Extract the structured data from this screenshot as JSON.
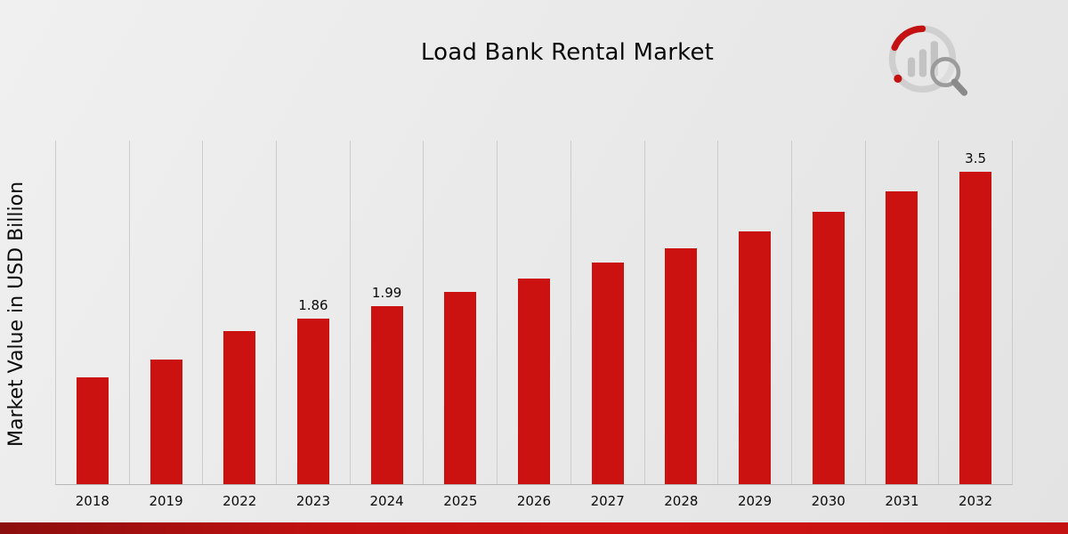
{
  "page": {
    "title": "Load Bank Rental Market",
    "y_axis_label": "Market Value in USD Billion",
    "brand_logo": "market-research-bar-chart-magnifier-logo",
    "colors": {
      "bar": "#cc1111",
      "gridline": "#cccccc",
      "baseline": "#b5b5b5",
      "footer_stripe_dark": "#8c0e0e",
      "footer_stripe_red": "#d01212"
    }
  },
  "chart_data": {
    "type": "bar",
    "title": "Load Bank Rental Market",
    "xlabel": "",
    "ylabel": "Market Value in USD Billion",
    "ylim": [
      0,
      3.85
    ],
    "grid": "vertical-only",
    "legend": "none",
    "bar_color": "#cc1111",
    "categories": [
      "2018",
      "2019",
      "2022",
      "2023",
      "2024",
      "2025",
      "2026",
      "2027",
      "2028",
      "2029",
      "2030",
      "2031",
      "2032"
    ],
    "values": [
      1.2,
      1.4,
      1.72,
      1.86,
      1.99,
      2.15,
      2.3,
      2.48,
      2.64,
      2.83,
      3.05,
      3.28,
      3.5
    ],
    "labels": [
      "",
      "",
      "",
      "1.86",
      "1.99",
      "",
      "",
      "",
      "",
      "",
      "",
      "",
      "3.5"
    ]
  }
}
